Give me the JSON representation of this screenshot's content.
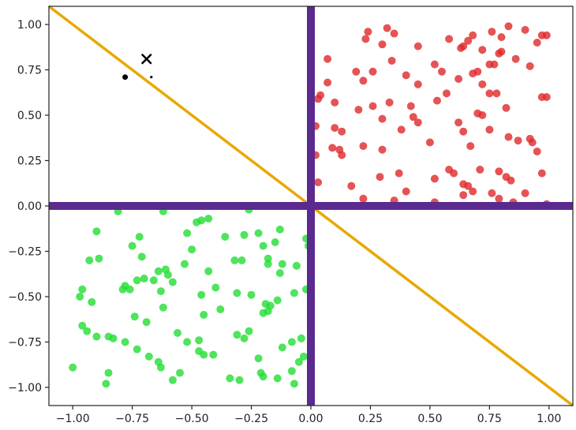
{
  "chart_data": {
    "type": "scatter",
    "title": "",
    "xlabel": "",
    "ylabel": "",
    "xlim": [
      -1.1,
      1.1
    ],
    "ylim": [
      -1.1,
      1.1
    ],
    "grid": false,
    "x_ticks": [
      -1.0,
      -0.75,
      -0.5,
      -0.25,
      0.0,
      0.25,
      0.5,
      0.75,
      1.0
    ],
    "x_tick_labels": [
      "−1.00",
      "−0.75",
      "−0.50",
      "−0.25",
      "0.00",
      "0.25",
      "0.50",
      "0.75",
      "1.00"
    ],
    "y_ticks": [
      1.0,
      0.75,
      0.5,
      0.25,
      0.0,
      -0.25,
      -0.5,
      -0.75,
      -1.0
    ],
    "y_tick_labels": [
      "1.00",
      "0.75",
      "0.50",
      "0.25",
      "0.00",
      "−0.25",
      "−0.50",
      "−0.75",
      "−1.00"
    ],
    "colors": {
      "red_points": "#e0282a",
      "green_points": "#22dd33",
      "axes_lines": "#5b2a8e",
      "diagonal_line": "#e8a800",
      "marker": "#000000"
    },
    "lines": [
      {
        "kind": "vertical",
        "x": 0.0,
        "color": "#5b2a8e"
      },
      {
        "kind": "horizontal",
        "y": 0.0,
        "color": "#5b2a8e"
      },
      {
        "kind": "segment",
        "from": [
          -1.1,
          1.1
        ],
        "to": [
          1.1,
          -1.1
        ],
        "color": "#e8a800"
      }
    ],
    "markers": [
      {
        "shape": "x",
        "x": -0.69,
        "y": 0.81
      },
      {
        "shape": "dot",
        "x": -0.78,
        "y": 0.71
      },
      {
        "shape": "dot",
        "x": -0.67,
        "y": 0.71
      }
    ],
    "series": [
      {
        "color": "#e0282a",
        "points": [
          [
            0.32,
            0.98
          ],
          [
            0.35,
            0.95
          ],
          [
            0.24,
            0.96
          ],
          [
            0.23,
            0.92
          ],
          [
            0.3,
            0.89
          ],
          [
            0.45,
            0.88
          ],
          [
            0.58,
            0.92
          ],
          [
            0.63,
            0.87
          ],
          [
            0.66,
            0.91
          ],
          [
            0.68,
            0.94
          ],
          [
            0.72,
            0.86
          ],
          [
            0.76,
            0.96
          ],
          [
            0.8,
            0.93
          ],
          [
            0.83,
            0.99
          ],
          [
            0.9,
            0.97
          ],
          [
            0.95,
            0.9
          ],
          [
            0.97,
            0.94
          ],
          [
            0.99,
            0.94
          ],
          [
            0.64,
            0.88
          ],
          [
            0.07,
            0.81
          ],
          [
            0.19,
            0.74
          ],
          [
            0.26,
            0.74
          ],
          [
            0.34,
            0.8
          ],
          [
            0.4,
            0.72
          ],
          [
            0.45,
            0.67
          ],
          [
            0.52,
            0.78
          ],
          [
            0.55,
            0.74
          ],
          [
            0.62,
            0.7
          ],
          [
            0.68,
            0.73
          ],
          [
            0.7,
            0.74
          ],
          [
            0.75,
            0.78
          ],
          [
            0.77,
            0.78
          ],
          [
            0.79,
            0.84
          ],
          [
            0.8,
            0.85
          ],
          [
            0.86,
            0.81
          ],
          [
            0.92,
            0.77
          ],
          [
            0.04,
            0.61
          ],
          [
            0.03,
            0.59
          ],
          [
            0.07,
            0.68
          ],
          [
            0.22,
            0.69
          ],
          [
            0.1,
            0.57
          ],
          [
            0.26,
            0.55
          ],
          [
            0.33,
            0.57
          ],
          [
            0.42,
            0.55
          ],
          [
            0.53,
            0.58
          ],
          [
            0.57,
            0.62
          ],
          [
            0.72,
            0.67
          ],
          [
            0.75,
            0.62
          ],
          [
            0.78,
            0.62
          ],
          [
            0.82,
            0.54
          ],
          [
            0.97,
            0.6
          ],
          [
            0.99,
            0.6
          ],
          [
            0.02,
            0.44
          ],
          [
            0.1,
            0.43
          ],
          [
            0.13,
            0.41
          ],
          [
            0.2,
            0.53
          ],
          [
            0.3,
            0.48
          ],
          [
            0.43,
            0.49
          ],
          [
            0.45,
            0.46
          ],
          [
            0.38,
            0.42
          ],
          [
            0.62,
            0.46
          ],
          [
            0.7,
            0.51
          ],
          [
            0.72,
            0.5
          ],
          [
            0.64,
            0.41
          ],
          [
            0.87,
            0.36
          ],
          [
            0.92,
            0.37
          ],
          [
            0.93,
            0.35
          ],
          [
            0.83,
            0.38
          ],
          [
            0.75,
            0.42
          ],
          [
            0.02,
            0.28
          ],
          [
            0.09,
            0.32
          ],
          [
            0.12,
            0.31
          ],
          [
            0.13,
            0.28
          ],
          [
            0.22,
            0.33
          ],
          [
            0.3,
            0.31
          ],
          [
            0.5,
            0.35
          ],
          [
            0.67,
            0.33
          ],
          [
            0.95,
            0.3
          ],
          [
            0.03,
            0.13
          ],
          [
            0.17,
            0.11
          ],
          [
            0.29,
            0.16
          ],
          [
            0.37,
            0.18
          ],
          [
            0.4,
            0.08
          ],
          [
            0.52,
            0.15
          ],
          [
            0.58,
            0.2
          ],
          [
            0.6,
            0.18
          ],
          [
            0.64,
            0.12
          ],
          [
            0.66,
            0.11
          ],
          [
            0.68,
            0.08
          ],
          [
            0.71,
            0.2
          ],
          [
            0.76,
            0.07
          ],
          [
            0.79,
            0.19
          ],
          [
            0.82,
            0.16
          ],
          [
            0.84,
            0.14
          ],
          [
            0.9,
            0.07
          ],
          [
            0.97,
            0.18
          ],
          [
            0.22,
            0.04
          ],
          [
            0.35,
            0.03
          ],
          [
            0.52,
            0.02
          ],
          [
            0.64,
            0.06
          ],
          [
            0.79,
            0.04
          ],
          [
            0.85,
            0.02
          ],
          [
            0.99,
            0.01
          ]
        ]
      },
      {
        "color": "#22dd33",
        "points": [
          [
            -0.81,
            -0.03
          ],
          [
            -0.62,
            -0.03
          ],
          [
            -0.48,
            -0.09
          ],
          [
            -0.46,
            -0.08
          ],
          [
            -0.43,
            -0.07
          ],
          [
            -0.26,
            -0.02
          ],
          [
            -0.9,
            -0.14
          ],
          [
            -0.72,
            -0.17
          ],
          [
            -0.52,
            -0.15
          ],
          [
            -0.36,
            -0.17
          ],
          [
            -0.28,
            -0.16
          ],
          [
            -0.22,
            -0.15
          ],
          [
            -0.13,
            -0.13
          ],
          [
            -0.75,
            -0.22
          ],
          [
            -0.5,
            -0.24
          ],
          [
            -0.32,
            -0.3
          ],
          [
            -0.29,
            -0.3
          ],
          [
            -0.2,
            -0.22
          ],
          [
            -0.15,
            -0.2
          ],
          [
            -0.02,
            -0.18
          ],
          [
            -0.01,
            -0.22
          ],
          [
            -0.93,
            -0.3
          ],
          [
            -0.89,
            -0.29
          ],
          [
            -0.71,
            -0.28
          ],
          [
            -0.64,
            -0.36
          ],
          [
            -0.61,
            -0.35
          ],
          [
            -0.6,
            -0.38
          ],
          [
            -0.53,
            -0.32
          ],
          [
            -0.43,
            -0.36
          ],
          [
            -0.18,
            -0.29
          ],
          [
            -0.18,
            -0.32
          ],
          [
            -0.12,
            -0.32
          ],
          [
            -0.06,
            -0.33
          ],
          [
            -0.13,
            -0.37
          ],
          [
            -0.97,
            -0.5
          ],
          [
            -0.96,
            -0.46
          ],
          [
            -0.92,
            -0.53
          ],
          [
            -0.79,
            -0.46
          ],
          [
            -0.78,
            -0.44
          ],
          [
            -0.76,
            -0.46
          ],
          [
            -0.73,
            -0.41
          ],
          [
            -0.7,
            -0.4
          ],
          [
            -0.66,
            -0.41
          ],
          [
            -0.63,
            -0.47
          ],
          [
            -0.58,
            -0.42
          ],
          [
            -0.46,
            -0.49
          ],
          [
            -0.4,
            -0.45
          ],
          [
            -0.31,
            -0.48
          ],
          [
            -0.25,
            -0.49
          ],
          [
            -0.19,
            -0.54
          ],
          [
            -0.17,
            -0.55
          ],
          [
            -0.14,
            -0.52
          ],
          [
            -0.07,
            -0.48
          ],
          [
            -0.02,
            -0.46
          ],
          [
            -0.96,
            -0.66
          ],
          [
            -0.94,
            -0.69
          ],
          [
            -0.9,
            -0.72
          ],
          [
            -0.85,
            -0.72
          ],
          [
            -0.83,
            -0.73
          ],
          [
            -0.78,
            -0.75
          ],
          [
            -0.74,
            -0.61
          ],
          [
            -0.69,
            -0.64
          ],
          [
            -0.62,
            -0.56
          ],
          [
            -0.56,
            -0.7
          ],
          [
            -0.52,
            -0.75
          ],
          [
            -0.47,
            -0.74
          ],
          [
            -0.45,
            -0.6
          ],
          [
            -0.38,
            -0.57
          ],
          [
            -0.31,
            -0.71
          ],
          [
            -0.28,
            -0.73
          ],
          [
            -0.26,
            -0.69
          ],
          [
            -0.2,
            -0.59
          ],
          [
            -0.18,
            -0.58
          ],
          [
            -0.12,
            -0.78
          ],
          [
            -0.08,
            -0.75
          ],
          [
            -0.04,
            -0.73
          ],
          [
            0.0,
            -0.62
          ],
          [
            -1.0,
            -0.89
          ],
          [
            -0.85,
            -0.92
          ],
          [
            -0.86,
            -0.98
          ],
          [
            -0.73,
            -0.79
          ],
          [
            -0.68,
            -0.83
          ],
          [
            -0.64,
            -0.86
          ],
          [
            -0.63,
            -0.89
          ],
          [
            -0.58,
            -0.96
          ],
          [
            -0.55,
            -0.92
          ],
          [
            -0.47,
            -0.8
          ],
          [
            -0.45,
            -0.82
          ],
          [
            -0.41,
            -0.82
          ],
          [
            -0.34,
            -0.95
          ],
          [
            -0.3,
            -0.96
          ],
          [
            -0.22,
            -0.84
          ],
          [
            -0.21,
            -0.92
          ],
          [
            -0.2,
            -0.94
          ],
          [
            -0.14,
            -0.95
          ],
          [
            -0.08,
            -0.91
          ],
          [
            -0.07,
            -0.98
          ],
          [
            -0.05,
            -0.86
          ],
          [
            -0.03,
            -0.83
          ]
        ]
      }
    ]
  }
}
